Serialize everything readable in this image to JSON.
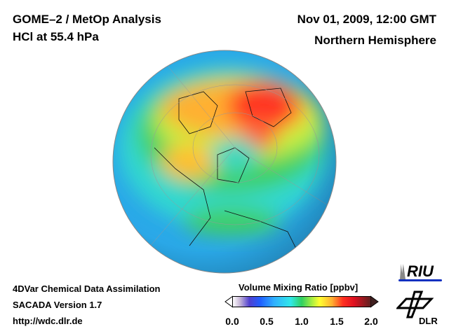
{
  "header": {
    "title_line1": "GOME–2 / MetOp Analysis",
    "title_line2": "HCl at 55.4 hPa",
    "date": "Nov 01, 2009, 12:00 GMT",
    "region": "Northern Hemisphere"
  },
  "footer": {
    "line1": "4DVar Chemical Data Assimilation",
    "line2": "SACADA Version 1.7",
    "url": "http://wdc.dlr.de"
  },
  "colorbar": {
    "title": "Volume Mixing Ratio [ppbv]",
    "ticks": [
      "0.0",
      "0.5",
      "1.0",
      "1.5",
      "2.0"
    ],
    "min": 0,
    "max": 2
  },
  "logos": {
    "riu": "RIU",
    "dlr": "DLR"
  }
}
